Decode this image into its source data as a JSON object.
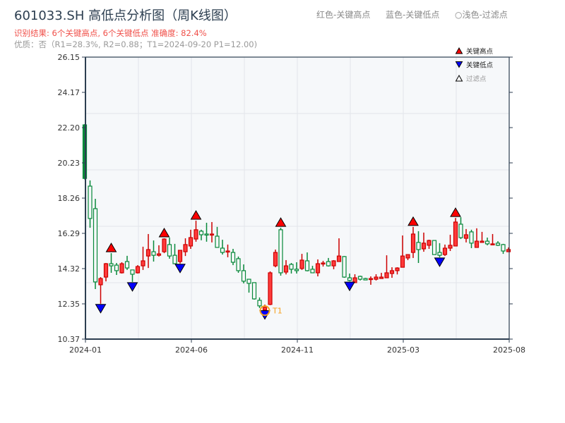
{
  "header": {
    "title": "601033.SH 高低点分析图（周K线图）",
    "result_line": "识别结果: 6个关键高点, 6个关键低点  准确度: 82.4%",
    "quality_line": "优质：否（R1=28.3%, R2=0.88；T1=2024-09-20 P1=12.00)",
    "legend_red": "红色-关键高点",
    "legend_blue": "蓝色-关键低点",
    "legend_light": "○浅色-过滤点"
  },
  "chart_data": {
    "type": "candlestick",
    "title": "601033.SH 高低点分析图（周K线图）",
    "xlabel": "",
    "ylabel": "",
    "ylim": [
      10.37,
      26.15
    ],
    "y_ticks": [
      "26.15",
      "24.17",
      "22.20",
      "20.23",
      "18.26",
      "16.29",
      "14.32",
      "12.35",
      "10.37"
    ],
    "x_tick_labels": [
      {
        "index": 0,
        "label": "2024-01"
      },
      {
        "index": 20,
        "label": "2024-06"
      },
      {
        "index": 40,
        "label": "2024-11"
      },
      {
        "index": 60,
        "label": "2025-03"
      },
      {
        "index": 80,
        "label": "2025-08"
      }
    ],
    "grid": true,
    "legend_placement": "top-right",
    "legend": [
      {
        "label": "关键高点",
        "marker": "triangle-up",
        "color": "#ff0000"
      },
      {
        "label": "关键低点",
        "marker": "triangle-down",
        "color": "#0000ff"
      },
      {
        "label": "过滤点",
        "marker": "triangle-up-hollow",
        "color": "#ffffff"
      }
    ],
    "colors": {
      "up": "#ee2a2a",
      "down": "#08893a",
      "high_marker": "#ff0000",
      "low_marker": "#0000ff",
      "t1_marker": "#f5a020",
      "background": "#f6f8fa"
    },
    "candles_ohlc": [
      [
        22.36,
        22.4,
        19.3,
        19.36
      ],
      [
        18.93,
        19.25,
        16.6,
        17.12
      ],
      [
        17.67,
        18.22,
        13.17,
        13.57
      ],
      [
        13.41,
        13.84,
        12.35,
        13.76
      ],
      [
        13.84,
        14.63,
        13.6,
        14.59
      ],
      [
        14.59,
        15.18,
        14.08,
        14.47
      ],
      [
        14.51,
        14.63,
        13.96,
        14.2
      ],
      [
        14.08,
        14.67,
        14.04,
        14.59
      ],
      [
        14.71,
        15.03,
        14.24,
        14.35
      ],
      [
        14.24,
        14.24,
        13.57,
        14.0
      ],
      [
        14.08,
        14.51,
        14.04,
        14.43
      ],
      [
        14.47,
        15.54,
        14.24,
        14.75
      ],
      [
        15.02,
        16.25,
        14.35,
        15.38
      ],
      [
        15.26,
        15.89,
        14.71,
        15.06
      ],
      [
        15.06,
        15.62,
        14.99,
        15.14
      ],
      [
        15.26,
        16.01,
        15.18,
        15.97
      ],
      [
        15.66,
        16.05,
        14.87,
        15.02
      ],
      [
        15.06,
        15.7,
        14.59,
        14.59
      ],
      [
        14.71,
        15.34,
        14.6,
        15.34
      ],
      [
        15.26,
        16.01,
        15.02,
        15.66
      ],
      [
        15.58,
        16.49,
        15.42,
        16.05
      ],
      [
        15.97,
        17.0,
        15.82,
        16.49
      ],
      [
        16.41,
        16.49,
        15.9,
        16.21
      ],
      [
        16.25,
        16.88,
        15.82,
        16.21
      ],
      [
        16.21,
        16.92,
        15.78,
        16.25
      ],
      [
        16.13,
        16.65,
        15.5,
        15.5
      ],
      [
        15.46,
        15.93,
        15.1,
        15.22
      ],
      [
        15.26,
        15.66,
        14.95,
        15.3
      ],
      [
        15.22,
        15.42,
        14.51,
        14.67
      ],
      [
        14.87,
        14.99,
        14.08,
        14.2
      ],
      [
        14.2,
        14.55,
        13.49,
        13.61
      ],
      [
        13.72,
        13.72,
        12.97,
        13.49
      ],
      [
        13.53,
        13.53,
        12.58,
        12.62
      ],
      [
        12.54,
        12.7,
        12.11,
        12.23
      ],
      [
        12.0,
        12.3,
        12.0,
        12.15
      ],
      [
        12.31,
        14.16,
        12.27,
        14.08
      ],
      [
        14.47,
        15.38,
        14.39,
        15.22
      ],
      [
        16.49,
        16.6,
        13.92,
        14.08
      ],
      [
        14.12,
        14.79,
        13.99,
        14.47
      ],
      [
        14.55,
        14.63,
        14.04,
        14.28
      ],
      [
        14.28,
        14.67,
        14.04,
        14.2
      ],
      [
        14.32,
        15.14,
        14.24,
        14.79
      ],
      [
        14.75,
        15.22,
        14.16,
        14.2
      ],
      [
        14.28,
        14.47,
        14.08,
        14.08
      ],
      [
        14.08,
        14.83,
        13.88,
        14.59
      ],
      [
        14.59,
        14.75,
        14.43,
        14.63
      ],
      [
        14.71,
        14.91,
        14.43,
        14.47
      ],
      [
        14.47,
        14.79,
        14.28,
        14.75
      ],
      [
        14.71,
        16.01,
        14.71,
        15.02
      ],
      [
        14.99,
        15.02,
        13.8,
        13.84
      ],
      [
        13.8,
        14.04,
        13.6,
        13.65
      ],
      [
        13.53,
        14.0,
        13.53,
        13.8
      ],
      [
        13.88,
        13.92,
        13.65,
        13.72
      ],
      [
        13.76,
        13.8,
        13.68,
        13.68
      ],
      [
        13.72,
        13.88,
        13.41,
        13.76
      ],
      [
        13.72,
        14.0,
        13.65,
        13.84
      ],
      [
        13.76,
        14.08,
        13.76,
        13.84
      ],
      [
        13.8,
        15.06,
        13.8,
        14.08
      ],
      [
        14.04,
        14.39,
        13.8,
        14.2
      ],
      [
        14.2,
        14.39,
        13.99,
        14.35
      ],
      [
        14.39,
        16.17,
        14.39,
        15.02
      ],
      [
        14.91,
        15.1,
        14.79,
        15.1
      ],
      [
        15.22,
        16.65,
        14.91,
        16.25
      ],
      [
        15.78,
        16.41,
        14.63,
        15.38
      ],
      [
        15.42,
        16.33,
        15.26,
        15.74
      ],
      [
        15.62,
        15.93,
        15.42,
        15.89
      ],
      [
        15.89,
        15.89,
        15.1,
        15.1
      ],
      [
        15.22,
        15.74,
        14.95,
        15.06
      ],
      [
        15.1,
        15.66,
        15.02,
        15.46
      ],
      [
        15.46,
        16.21,
        15.3,
        15.62
      ],
      [
        15.58,
        17.15,
        15.58,
        16.92
      ],
      [
        16.8,
        17.19,
        15.97,
        16.05
      ],
      [
        16.01,
        16.53,
        15.78,
        16.21
      ],
      [
        16.37,
        16.49,
        15.46,
        15.74
      ],
      [
        15.5,
        16.57,
        15.5,
        15.85
      ],
      [
        15.78,
        16.37,
        15.78,
        15.85
      ],
      [
        15.85,
        16.05,
        15.62,
        15.7
      ],
      [
        15.66,
        16.25,
        15.66,
        15.7
      ],
      [
        15.74,
        15.85,
        15.58,
        15.62
      ],
      [
        15.66,
        15.7,
        15.14,
        15.3
      ],
      [
        15.26,
        15.5,
        15.26,
        15.38
      ]
    ],
    "key_high_indices": [
      5,
      15,
      21,
      37,
      62,
      70
    ],
    "key_low_indices": [
      3,
      9,
      18,
      34,
      50,
      67
    ],
    "t1": {
      "index": 34,
      "label": "T1",
      "date": "2024-09-20",
      "price": 12.0
    }
  }
}
